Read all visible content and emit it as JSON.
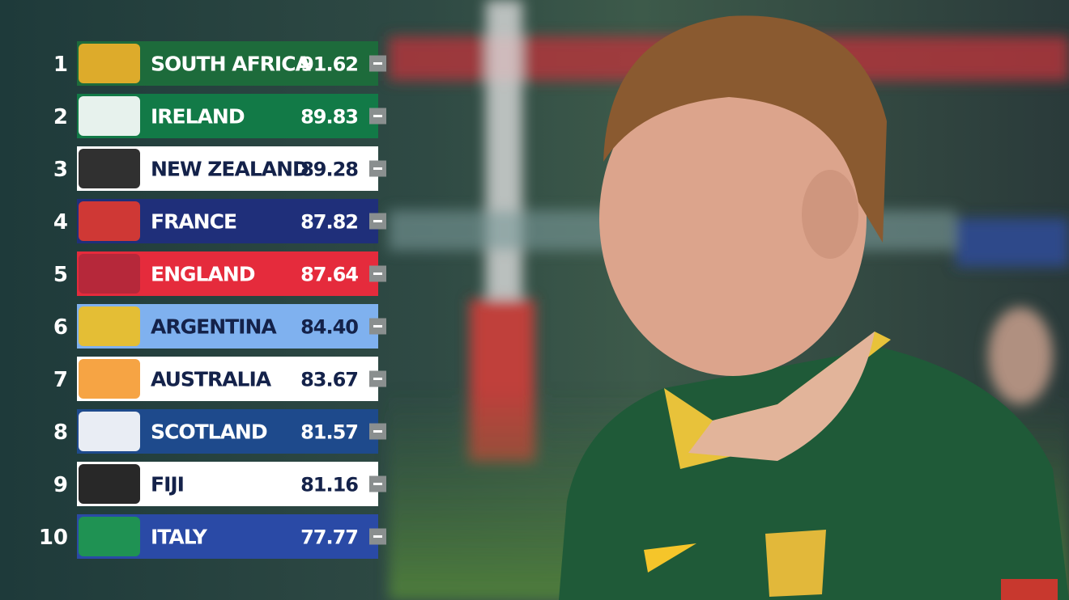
{
  "rankings": {
    "rows": [
      {
        "rank": "1",
        "team": "SOUTH AFRICA",
        "points": "91.62",
        "color": "#1d6b3b",
        "text_color": "#ffffff"
      },
      {
        "rank": "2",
        "team": "IRELAND",
        "points": "89.83",
        "color": "#127a47",
        "text_color": "#ffffff"
      },
      {
        "rank": "3",
        "team": "NEW ZEALAND",
        "points": "89.28",
        "color": "#ffffff",
        "text_color": "#14224a"
      },
      {
        "rank": "4",
        "team": "FRANCE",
        "points": "87.82",
        "color": "#1f2f7a",
        "text_color": "#ffffff"
      },
      {
        "rank": "5",
        "team": "ENGLAND",
        "points": "87.64",
        "color": "#e52b3c",
        "text_color": "#ffffff"
      },
      {
        "rank": "6",
        "team": "ARGENTINA",
        "points": "84.40",
        "color": "#7fb1ef",
        "text_color": "#14224a"
      },
      {
        "rank": "7",
        "team": "AUSTRALIA",
        "points": "83.67",
        "color": "#ffffff",
        "text_color": "#14224a"
      },
      {
        "rank": "8",
        "team": "SCOTLAND",
        "points": "81.57",
        "color": "#1e4a8c",
        "text_color": "#ffffff"
      },
      {
        "rank": "9",
        "team": "FIJI",
        "points": "81.16",
        "color": "#ffffff",
        "text_color": "#14224a"
      },
      {
        "rank": "10",
        "team": "ITALY",
        "points": "77.77",
        "color": "#2a4aa6",
        "text_color": "#ffffff"
      }
    ]
  }
}
